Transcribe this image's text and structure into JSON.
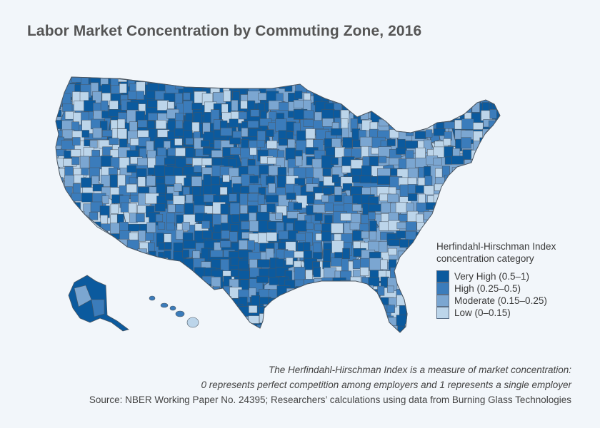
{
  "title": "Labor Market Concentration by Commuting Zone, 2016",
  "legend": {
    "title_line1": "Herfindahl-Hirschman Index",
    "title_line2": "concentration category",
    "items": [
      {
        "label": "Very High (0.5–1)",
        "color": "#0b5a9e"
      },
      {
        "label": "High (0.25–0.5)",
        "color": "#3b7cbb"
      },
      {
        "label": "Moderate (0.15–0.25)",
        "color": "#7ba6d1"
      },
      {
        "label": "Low (0–0.15)",
        "color": "#bcd5ea"
      }
    ]
  },
  "footnote": {
    "line1": "The Herfindahl-Hirschman Index is a measure of market concentration:",
    "line2": "0 represents perfect competition among employers and 1 represents a single employer",
    "source": "Source: NBER Working Paper No. 24395; Researchers’ calculations using data from Burning Glass Technologies"
  },
  "map_data": {
    "outline_color": "#4a5560",
    "regions": [
      {
        "name": "Washington",
        "category": 0
      },
      {
        "name": "Oregon",
        "category": 1
      },
      {
        "name": "California",
        "category": 3
      },
      {
        "name": "Nevada",
        "category": 3
      },
      {
        "name": "Idaho",
        "category": 0
      },
      {
        "name": "Montana",
        "category": 0
      },
      {
        "name": "Wyoming",
        "category": 0
      },
      {
        "name": "Utah",
        "category": 1
      },
      {
        "name": "Arizona",
        "category": 3
      },
      {
        "name": "Colorado",
        "category": 0
      },
      {
        "name": "New Mexico",
        "category": 1
      },
      {
        "name": "North Dakota",
        "category": 0
      },
      {
        "name": "South Dakota",
        "category": 0
      },
      {
        "name": "Nebraska",
        "category": 0
      },
      {
        "name": "Kansas",
        "category": 0
      },
      {
        "name": "Oklahoma",
        "category": 0
      },
      {
        "name": "Texas",
        "category": 0
      },
      {
        "name": "Minnesota",
        "category": 0
      },
      {
        "name": "Iowa",
        "category": 1
      },
      {
        "name": "Missouri",
        "category": 1
      },
      {
        "name": "Arkansas",
        "category": 0
      },
      {
        "name": "Louisiana",
        "category": 1
      },
      {
        "name": "Wisconsin",
        "category": 1
      },
      {
        "name": "Illinois",
        "category": 2
      },
      {
        "name": "Michigan",
        "category": 1
      },
      {
        "name": "Indiana",
        "category": 2
      },
      {
        "name": "Ohio",
        "category": 2
      },
      {
        "name": "Kentucky",
        "category": 0
      },
      {
        "name": "Tennessee",
        "category": 1
      },
      {
        "name": "Mississippi",
        "category": 0
      },
      {
        "name": "Alabama",
        "category": 1
      },
      {
        "name": "Georgia",
        "category": 1
      },
      {
        "name": "Florida",
        "category": 3
      },
      {
        "name": "South Carolina",
        "category": 1
      },
      {
        "name": "North Carolina",
        "category": 2
      },
      {
        "name": "Virginia",
        "category": 1
      },
      {
        "name": "West Virginia",
        "category": 0
      },
      {
        "name": "Pennsylvania",
        "category": 2
      },
      {
        "name": "New York",
        "category": 2
      },
      {
        "name": "Vermont",
        "category": 1
      },
      {
        "name": "New Hampshire",
        "category": 2
      },
      {
        "name": "Maine",
        "category": 0
      },
      {
        "name": "Massachusetts",
        "category": 3
      },
      {
        "name": "Alaska",
        "category": 0
      },
      {
        "name": "Hawaii",
        "category": 1
      }
    ]
  }
}
